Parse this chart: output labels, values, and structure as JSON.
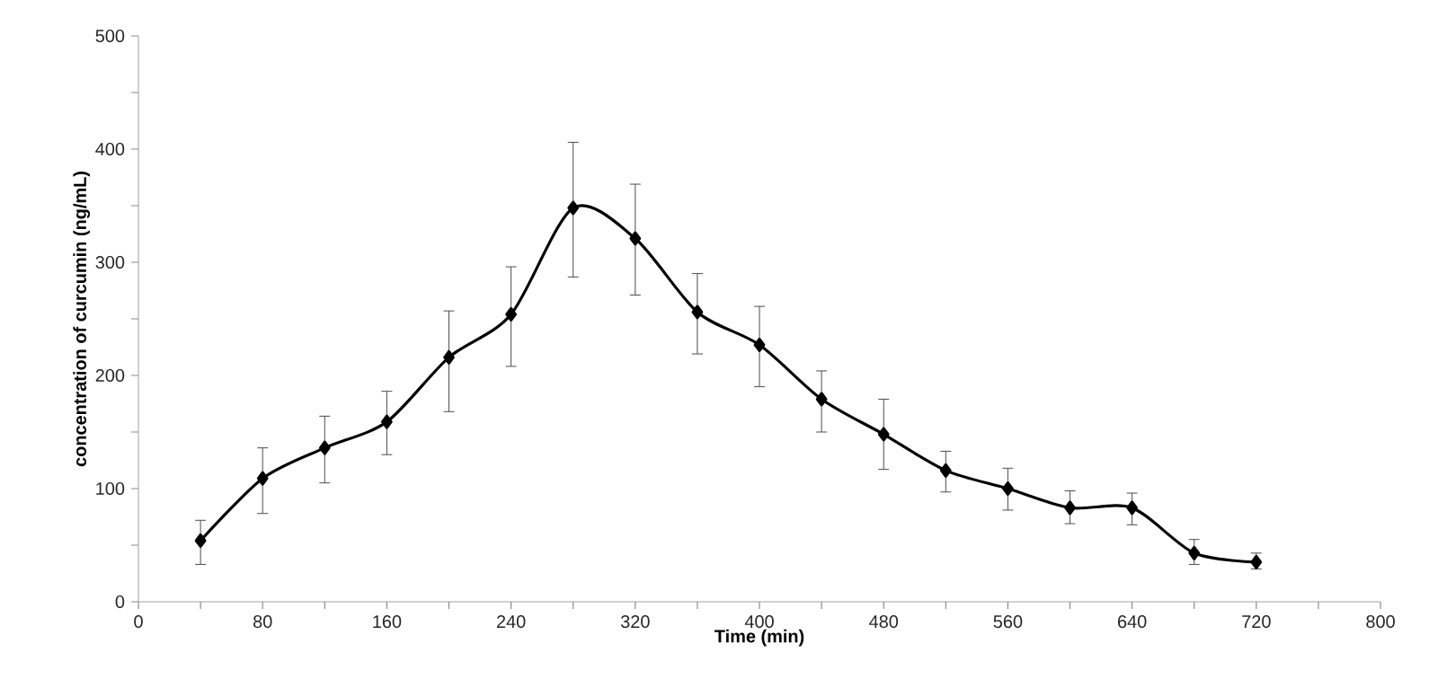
{
  "chart_data": {
    "type": "line",
    "xlabel": "Time (min)",
    "ylabel": "concentration of curcumin (ng/mL)",
    "x": [
      40,
      80,
      120,
      160,
      200,
      240,
      280,
      320,
      360,
      400,
      440,
      480,
      520,
      560,
      600,
      640,
      680,
      720
    ],
    "series": [
      {
        "color": "#000000",
        "values": [
          54,
          109,
          136,
          159,
          216,
          254,
          348,
          321,
          256,
          227,
          179,
          148,
          116,
          100,
          83,
          83,
          43,
          35
        ],
        "errors": [
          [
            33,
            72
          ],
          [
            78,
            136
          ],
          [
            105,
            164
          ],
          [
            130,
            186
          ],
          [
            168,
            257
          ],
          [
            208,
            296
          ],
          [
            287,
            406
          ],
          [
            271,
            369
          ],
          [
            219,
            290
          ],
          [
            190,
            261
          ],
          [
            150,
            204
          ],
          [
            117,
            179
          ],
          [
            97,
            133
          ],
          [
            81,
            118
          ],
          [
            69,
            98
          ],
          [
            68,
            96
          ],
          [
            33,
            55
          ],
          [
            29,
            43
          ]
        ]
      }
    ],
    "xlim": [
      0,
      800
    ],
    "ylim": [
      0,
      500
    ],
    "xticks": [
      0,
      {
        "value": 40,
        "label": null
      },
      80,
      {
        "value": 120,
        "label": null
      },
      160,
      {
        "value": 200,
        "label": null
      },
      240,
      {
        "value": 280,
        "label": null
      },
      320,
      {
        "value": 360,
        "label": null
      },
      400,
      {
        "value": 440,
        "label": null
      },
      480,
      {
        "value": 520,
        "label": null
      },
      560,
      {
        "value": 600,
        "label": null
      },
      640,
      {
        "value": 680,
        "label": null
      },
      720,
      {
        "value": 760,
        "label": null
      },
      800
    ],
    "yticks": [
      0,
      {
        "value": 50,
        "label": null
      },
      100,
      {
        "value": 150,
        "label": null
      },
      200,
      {
        "value": 250,
        "label": null
      },
      300,
      {
        "value": 350,
        "label": null
      },
      400,
      {
        "value": 450,
        "label": null
      },
      500
    ],
    "marker": "diamond",
    "line_style": "solid"
  }
}
